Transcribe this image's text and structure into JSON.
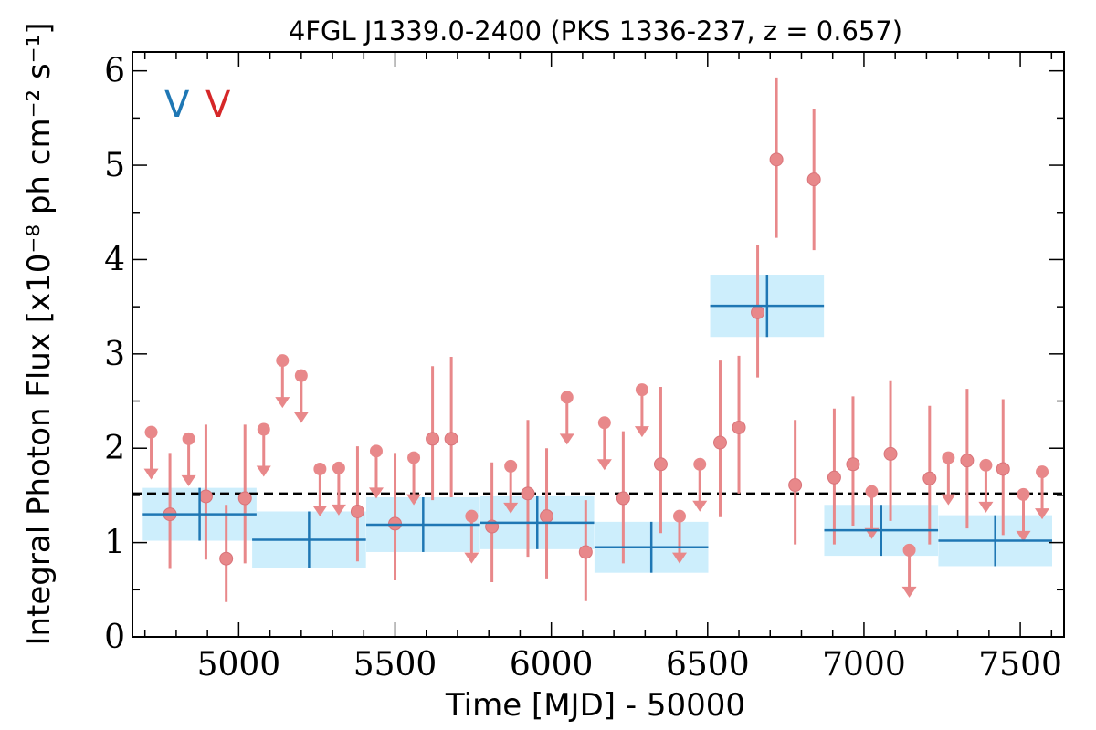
{
  "chart_data": {
    "type": "scatter",
    "title": "4FGL J1339.0-2400 (PKS 1336-237, z = 0.657)",
    "xlabel": "Time [MJD] - 50000",
    "ylabel": "Integral Photon Flux [x10⁻⁸ ph cm⁻² s⁻¹]",
    "xlim": [
      4660,
      7640
    ],
    "ylim": [
      0,
      6.2
    ],
    "xticks": [
      5000,
      5500,
      6000,
      6500,
      7000,
      7500
    ],
    "yticks": [
      0,
      1,
      2,
      3,
      4,
      5,
      6
    ],
    "xtick_labels": [
      "5000",
      "5500",
      "6000",
      "6500",
      "7000",
      "7500"
    ],
    "ytick_labels": [
      "0",
      "1",
      "2",
      "3",
      "4",
      "5",
      "6"
    ],
    "mean_flux": 1.52,
    "legend": {
      "placement": "top-left",
      "entries": [
        {
          "label": "V",
          "color": "#1f77b4"
        },
        {
          "label": "V",
          "color": "#d62728"
        }
      ]
    },
    "colors": {
      "long_bins": "#1f77b4",
      "long_bins_band": "#cdeefc",
      "short_bins": "#e8888a",
      "mean_line": "#000000"
    },
    "long_bins": [
      {
        "x": 4875,
        "xerr": 182,
        "y": 1.3,
        "yerr": 0.28
      },
      {
        "x": 5225,
        "xerr": 182,
        "y": 1.03,
        "yerr": 0.3
      },
      {
        "x": 5590,
        "xerr": 182,
        "y": 1.19,
        "yerr": 0.29
      },
      {
        "x": 5955,
        "xerr": 182,
        "y": 1.21,
        "yerr": 0.28
      },
      {
        "x": 6320,
        "xerr": 182,
        "y": 0.95,
        "yerr": 0.27
      },
      {
        "x": 6690,
        "xerr": 182,
        "y": 3.51,
        "yerr": 0.33
      },
      {
        "x": 7055,
        "xerr": 182,
        "y": 1.13,
        "yerr": 0.27
      },
      {
        "x": 7420,
        "xerr": 182,
        "y": 1.02,
        "yerr": 0.27
      }
    ],
    "short_bins": [
      {
        "x": 4720,
        "y": 2.17,
        "ul": true
      },
      {
        "x": 4780,
        "y": 1.3,
        "lo": 0.72,
        "hi": 1.95
      },
      {
        "x": 4840,
        "y": 2.1,
        "ul": true
      },
      {
        "x": 4895,
        "y": 1.49,
        "lo": 0.82,
        "hi": 2.25
      },
      {
        "x": 4960,
        "y": 0.83,
        "lo": 0.37,
        "hi": 1.4
      },
      {
        "x": 5020,
        "y": 1.47,
        "lo": 0.78,
        "hi": 2.25
      },
      {
        "x": 5080,
        "y": 2.2,
        "ul": true
      },
      {
        "x": 5140,
        "y": 2.93,
        "ul": true
      },
      {
        "x": 5200,
        "y": 2.77,
        "ul": true
      },
      {
        "x": 5260,
        "y": 1.78,
        "ul": true
      },
      {
        "x": 5320,
        "y": 1.79,
        "ul": true
      },
      {
        "x": 5380,
        "y": 1.33,
        "lo": 0.8,
        "hi": 2.02
      },
      {
        "x": 5440,
        "y": 1.97,
        "ul": true
      },
      {
        "x": 5500,
        "y": 1.2,
        "lo": 0.6,
        "hi": 1.95
      },
      {
        "x": 5560,
        "y": 1.9,
        "ul": true
      },
      {
        "x": 5620,
        "y": 2.1,
        "lo": 1.45,
        "hi": 2.87
      },
      {
        "x": 5680,
        "y": 2.1,
        "lo": 1.48,
        "hi": 2.97
      },
      {
        "x": 5745,
        "y": 1.28,
        "ul": true
      },
      {
        "x": 5810,
        "y": 1.17,
        "lo": 0.58,
        "hi": 1.85
      },
      {
        "x": 5870,
        "y": 1.81,
        "ul": true
      },
      {
        "x": 5925,
        "y": 1.52,
        "lo": 0.85,
        "hi": 2.3
      },
      {
        "x": 5985,
        "y": 1.28,
        "lo": 0.62,
        "hi": 2.0
      },
      {
        "x": 6050,
        "y": 2.54,
        "ul": true
      },
      {
        "x": 6110,
        "y": 0.9,
        "lo": 0.38,
        "hi": 1.45
      },
      {
        "x": 6170,
        "y": 2.27,
        "ul": true
      },
      {
        "x": 6230,
        "y": 1.47,
        "lo": 0.78,
        "hi": 2.18
      },
      {
        "x": 6290,
        "y": 2.62,
        "ul": true
      },
      {
        "x": 6350,
        "y": 1.83,
        "lo": 1.1,
        "hi": 2.65
      },
      {
        "x": 6410,
        "y": 1.28,
        "ul": true
      },
      {
        "x": 6475,
        "y": 1.83,
        "ul": true
      },
      {
        "x": 6540,
        "y": 2.06,
        "lo": 1.27,
        "hi": 2.93
      },
      {
        "x": 6600,
        "y": 2.22,
        "lo": 1.52,
        "hi": 2.98
      },
      {
        "x": 6660,
        "y": 3.44,
        "lo": 2.75,
        "hi": 4.15
      },
      {
        "x": 6720,
        "y": 5.06,
        "lo": 4.23,
        "hi": 5.93
      },
      {
        "x": 6780,
        "y": 1.61,
        "lo": 0.98,
        "hi": 2.3
      },
      {
        "x": 6840,
        "y": 4.85,
        "lo": 4.1,
        "hi": 5.6
      },
      {
        "x": 6905,
        "y": 1.69,
        "lo": 0.98,
        "hi": 2.42
      },
      {
        "x": 6965,
        "y": 1.83,
        "lo": 1.18,
        "hi": 2.55
      },
      {
        "x": 7025,
        "y": 1.54,
        "ul": true
      },
      {
        "x": 7085,
        "y": 1.94,
        "lo": 1.23,
        "hi": 2.72
      },
      {
        "x": 7145,
        "y": 0.92,
        "ul": true
      },
      {
        "x": 7210,
        "y": 1.68,
        "lo": 0.98,
        "hi": 2.45
      },
      {
        "x": 7270,
        "y": 1.9,
        "ul": true
      },
      {
        "x": 7330,
        "y": 1.87,
        "lo": 1.15,
        "hi": 2.63
      },
      {
        "x": 7390,
        "y": 1.82,
        "ul": true
      },
      {
        "x": 7445,
        "y": 1.78,
        "lo": 1.08,
        "hi": 2.52
      },
      {
        "x": 7510,
        "y": 1.51,
        "ul": true
      },
      {
        "x": 7570,
        "y": 1.75,
        "ul": true
      }
    ]
  }
}
